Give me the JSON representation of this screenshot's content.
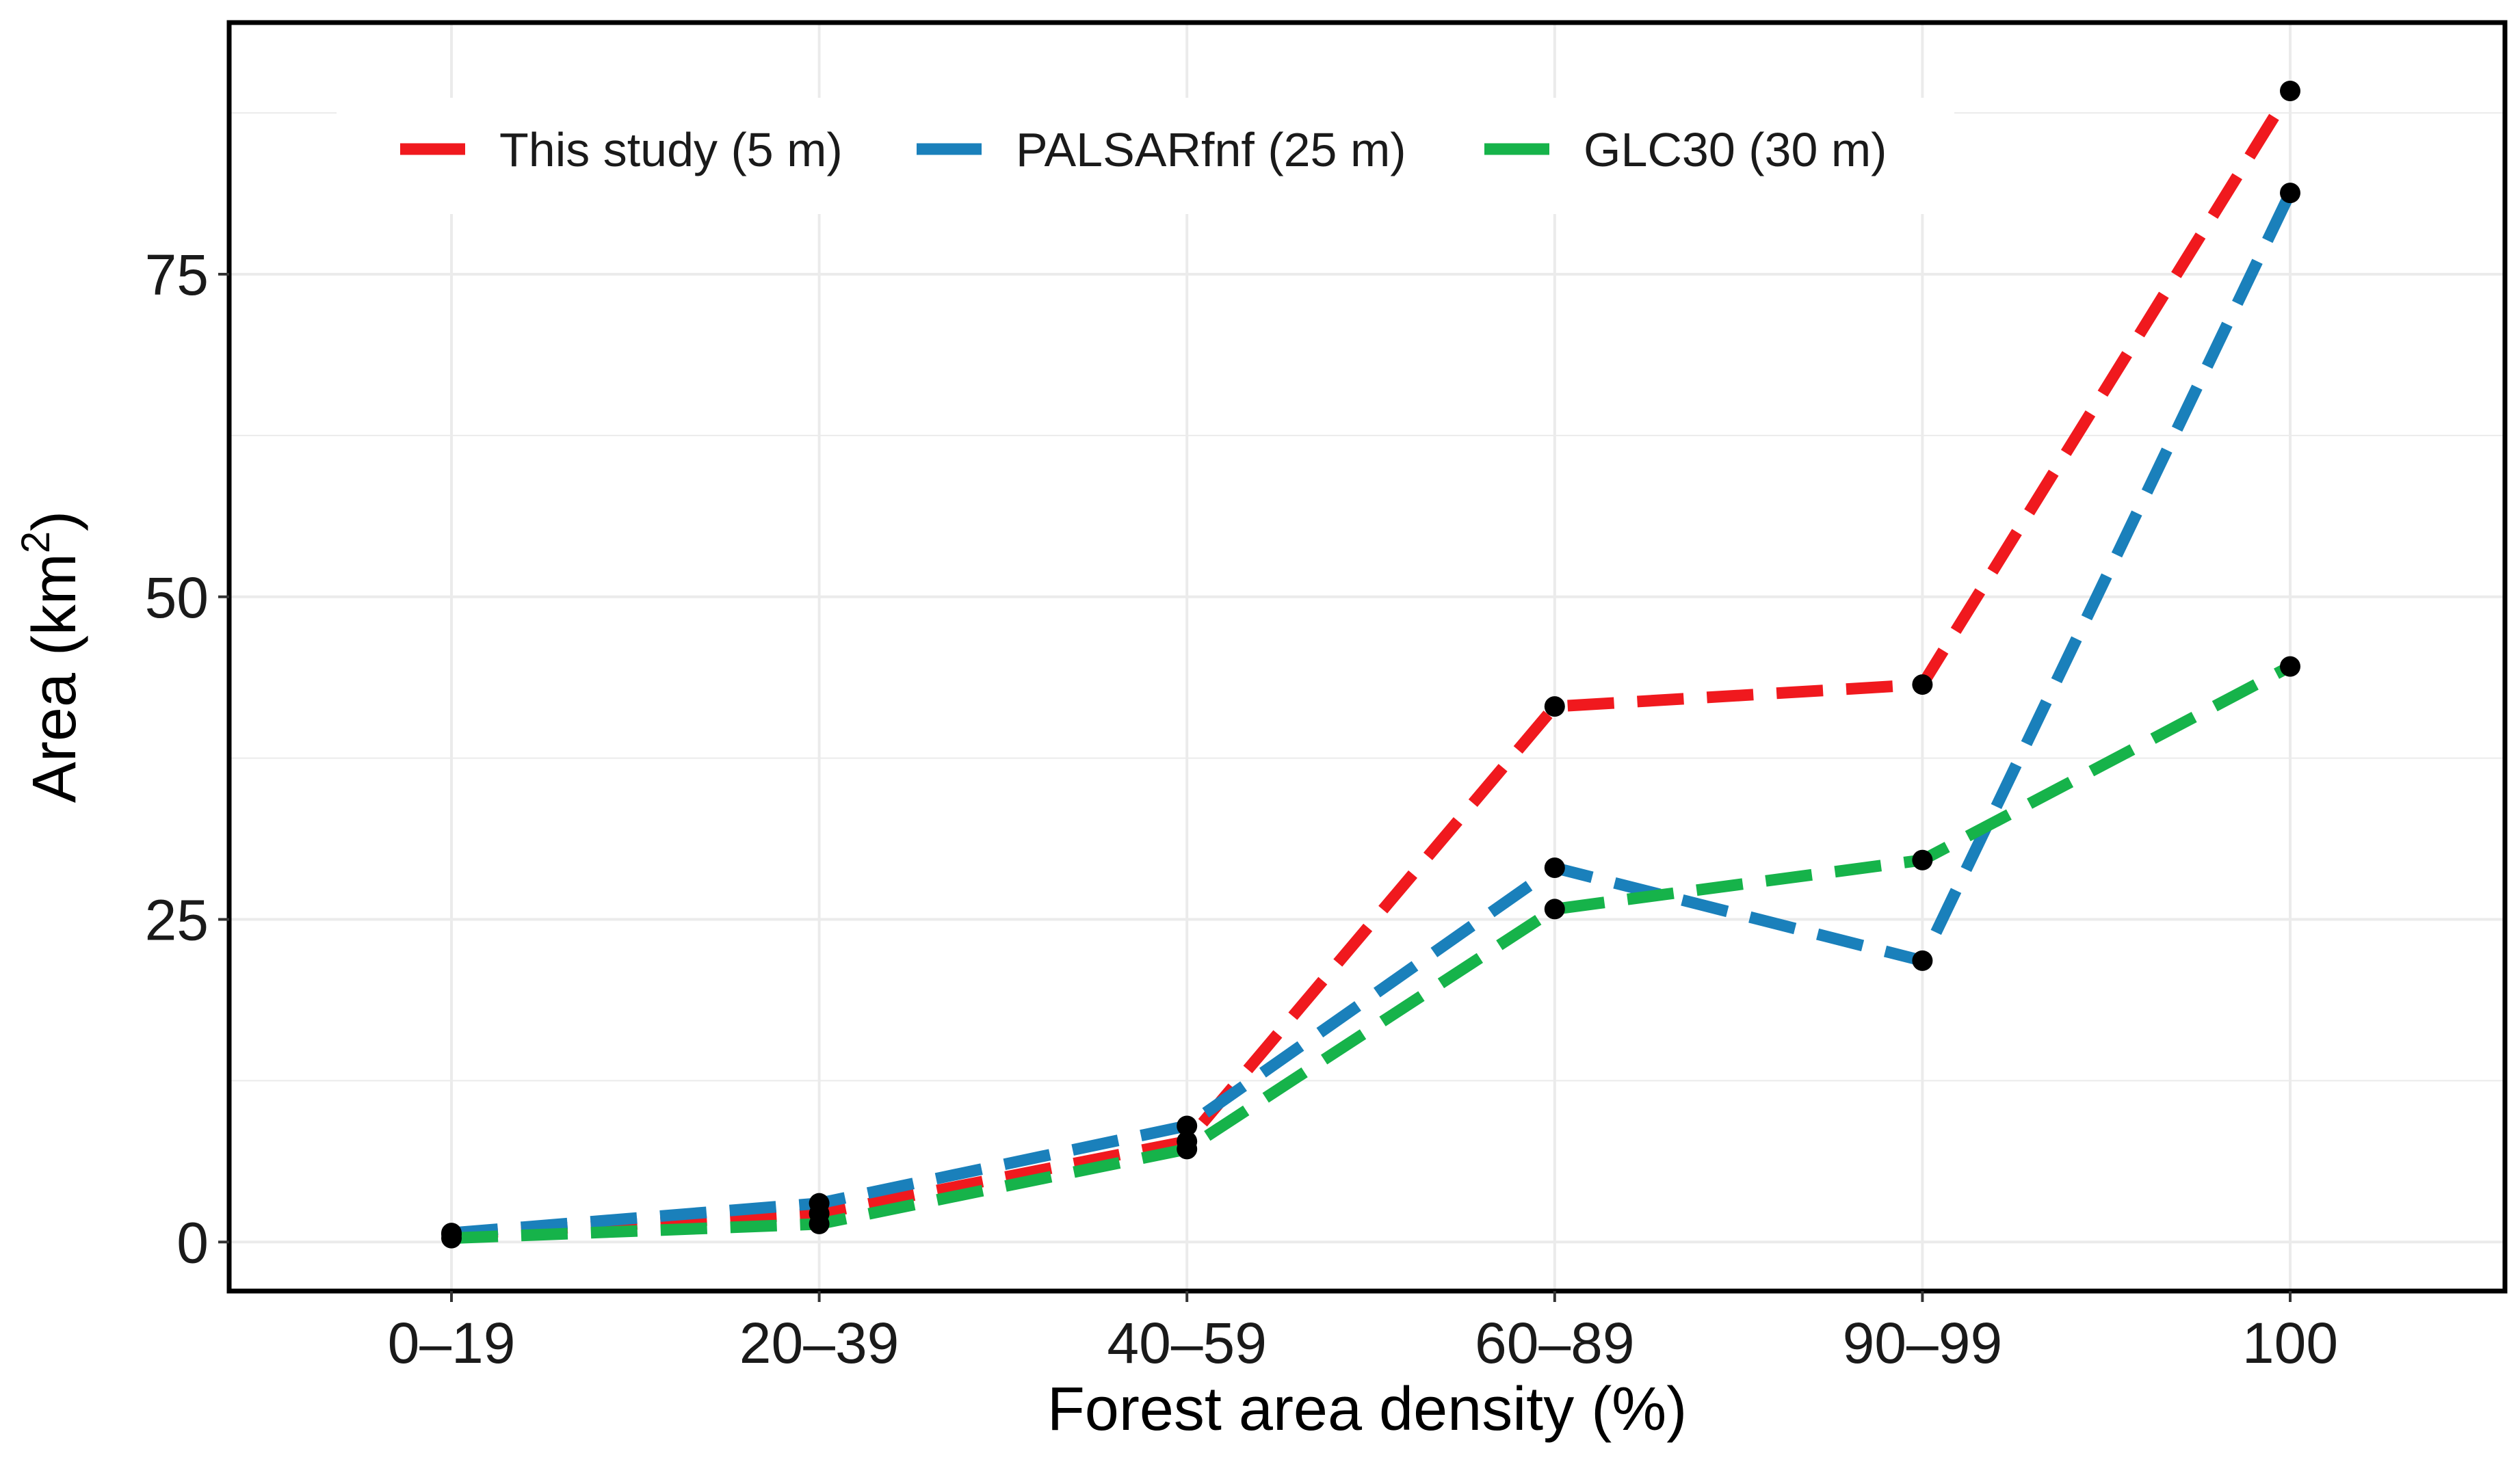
{
  "chart_data": {
    "type": "line",
    "title": "",
    "xlabel": "Forest area density (%)",
    "ylabel": {
      "text": "Area (km",
      "superscript": "2",
      "suffix": ")"
    },
    "categories": [
      "0–19",
      "20–39",
      "40–59",
      "60–89",
      "90–99",
      "100"
    ],
    "ylim": [
      -3.8,
      94.5
    ],
    "yticks": [
      0,
      25,
      50,
      75
    ],
    "ytick_labels": [
      "0",
      "25",
      "50",
      "75"
    ],
    "grid": true,
    "legend_position": "top",
    "series": [
      {
        "name": "This study (5 m)",
        "color": "#f0191e",
        "values": [
          0.6,
          2.2,
          7.8,
          41.5,
          43.2,
          89.2
        ]
      },
      {
        "name": "PALSARfnf (25 m)",
        "color": "#1a80bb",
        "values": [
          0.7,
          3.0,
          9.0,
          29.0,
          21.8,
          81.3
        ]
      },
      {
        "name": "GLC30 (30 m)",
        "color": "#16b34a",
        "values": [
          0.3,
          1.4,
          7.2,
          25.8,
          29.6,
          44.6
        ]
      }
    ]
  }
}
